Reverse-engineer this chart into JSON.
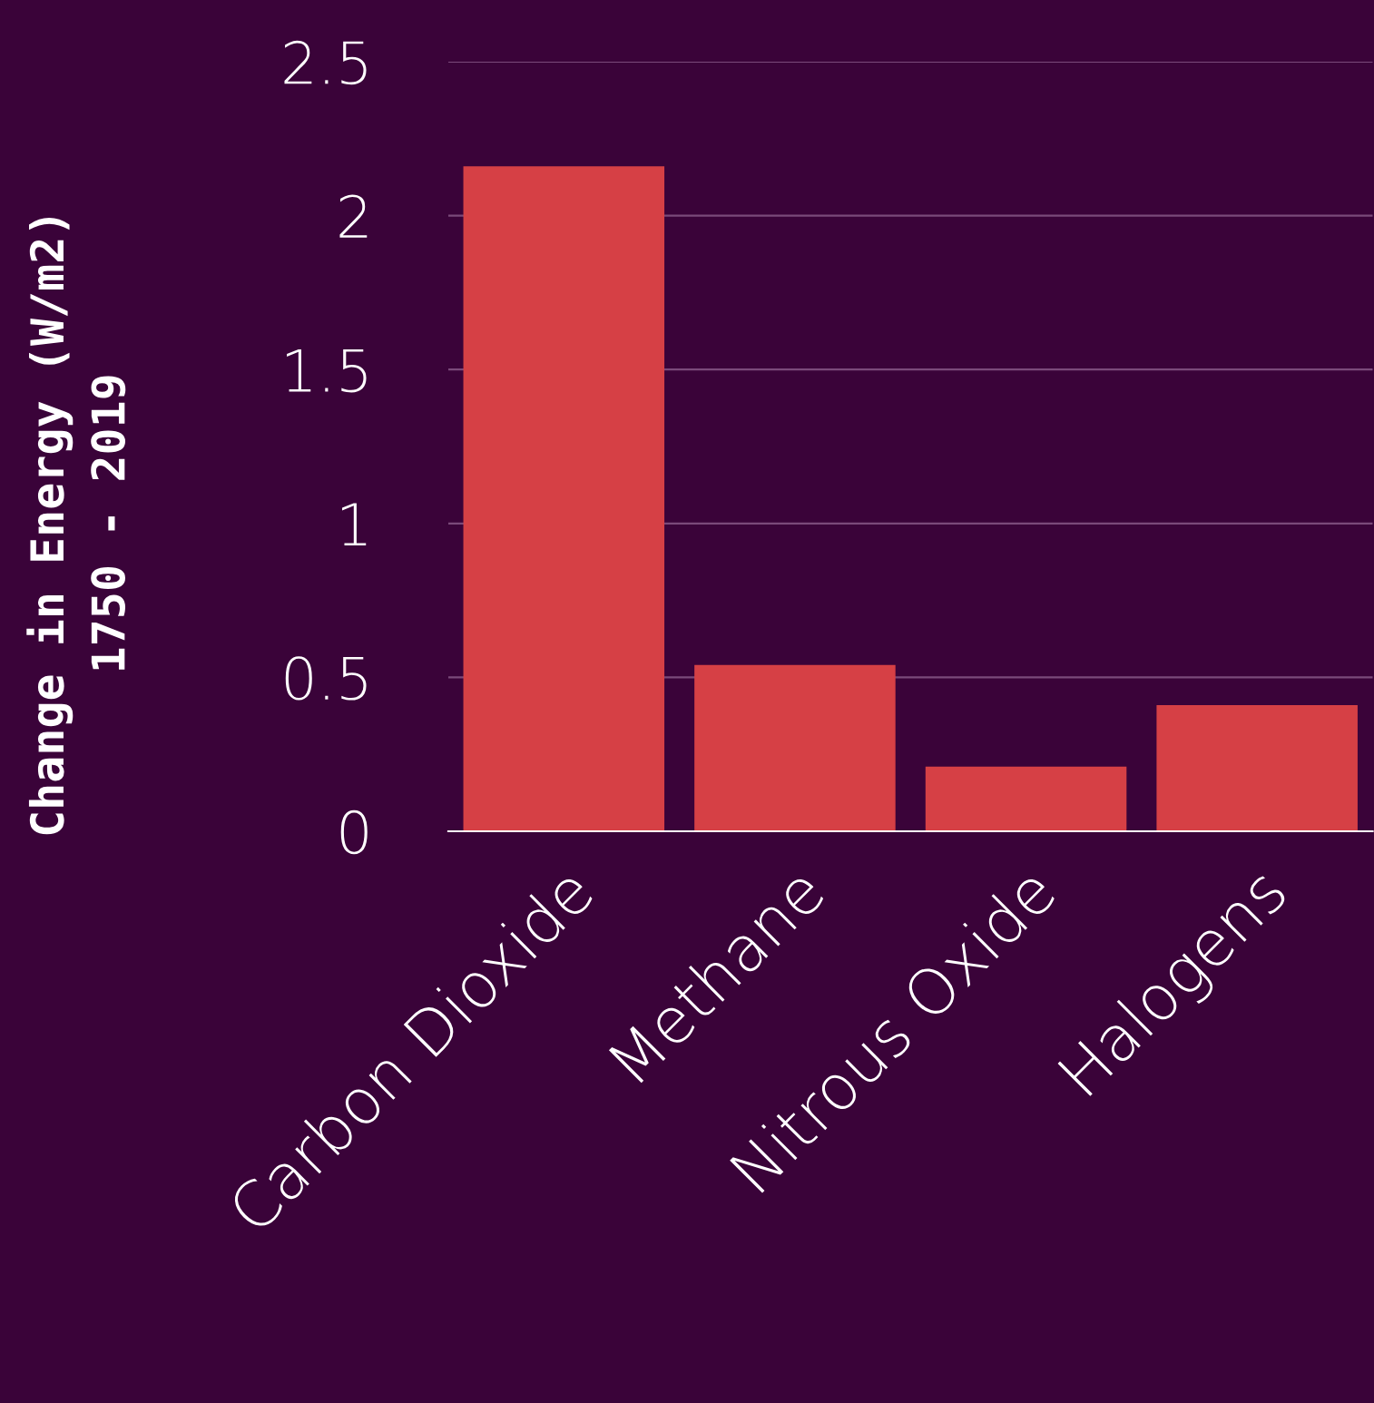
{
  "chart_data": {
    "type": "bar",
    "ylabel": "Change in Energy (W/m2)\n1750 - 2019",
    "categories": [
      "Carbon Dioxide",
      "Methane",
      "Nitrous Oxide",
      "Halogens"
    ],
    "values": [
      2.16,
      0.54,
      0.21,
      0.41
    ],
    "color": "#d64045",
    "ylim": [
      0,
      2.5
    ],
    "yticks": [
      0,
      0.5,
      1,
      1.5,
      2,
      2.5
    ],
    "grid": "y",
    "legend": false
  }
}
